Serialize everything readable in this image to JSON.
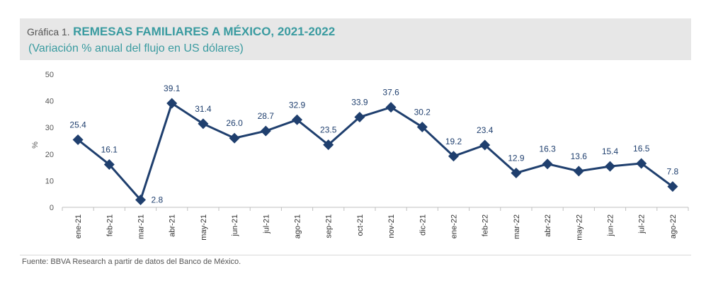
{
  "header": {
    "title_prefix": "Gráfica 1.",
    "title_main": "REMESAS FAMILIARES A MÉXICO, 2021-2022",
    "subtitle": "(Variación % anual del flujo en US dólares)"
  },
  "source": "Fuente: BBVA Research a partir de datos del Banco de México.",
  "chart_data": {
    "type": "line",
    "title": "REMESAS FAMILIARES A MÉXICO, 2021-2022",
    "subtitle": "(Variación % anual del flujo en US dólares)",
    "xlabel": "",
    "ylabel": "%",
    "ylim": [
      0,
      50
    ],
    "yticks": [
      0,
      10,
      20,
      30,
      40,
      50
    ],
    "grid": false,
    "legend": "none",
    "categories": [
      "ene-21",
      "feb-21",
      "mar-21",
      "abr-21",
      "may-21",
      "jun-21",
      "jul-21",
      "ago-21",
      "sep-21",
      "oct-21",
      "nov-21",
      "dic-21",
      "ene-22",
      "feb-22",
      "mar-22",
      "abr-22",
      "may-22",
      "jun-22",
      "jul-22",
      "ago-22"
    ],
    "series": [
      {
        "values": [
          25.4,
          16.1,
          2.8,
          39.1,
          31.4,
          26.0,
          28.7,
          32.9,
          23.5,
          33.9,
          37.6,
          30.2,
          19.2,
          23.4,
          12.9,
          16.3,
          13.6,
          15.4,
          16.5,
          7.8
        ],
        "labels": [
          "25.4",
          "16.1",
          "2.8",
          "39.1",
          "31.4",
          "26.0",
          "28.7",
          "32.9",
          "23.5",
          "33.9",
          "37.6",
          "30.2",
          "19.2",
          "23.4",
          "12.9",
          "16.3",
          "13.6",
          "15.4",
          "16.5",
          "7.8"
        ]
      }
    ],
    "colors": {
      "line": "#1f3f6e",
      "marker": "#1f3f6e",
      "labels": "#1f3f6e",
      "axis": "#bfbfbf",
      "ticks": "#555555"
    }
  }
}
